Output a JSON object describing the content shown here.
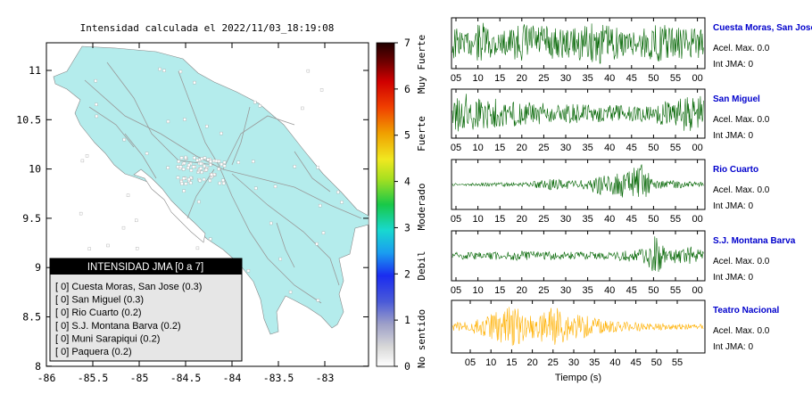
{
  "map": {
    "title": "Intensidad calculada el 2022/11/03_18:19:08",
    "x_ticks": [
      "-86",
      "-85.5",
      "-85",
      "-84.5",
      "-84",
      "-83.5",
      "-83"
    ],
    "y_ticks": [
      "11",
      "10.5",
      "10",
      "9.5",
      "9",
      "8.5",
      "8"
    ],
    "legend": {
      "title": "INTENSIDAD JMA [0 a 7]",
      "items": [
        "[ 0]  Cuesta Moras, San Jose (0.3)",
        "[ 0]  San Miguel (0.3)",
        "[ 0]  Rio Cuarto (0.2)",
        "[ 0]  S.J. Montana Barva (0.2)",
        "[ 0]  Muni Sarapiqui (0.2)",
        "[ 0]  Paquera (0.2)"
      ]
    }
  },
  "colorbar": {
    "ticks": [
      "0",
      "1",
      "2",
      "3",
      "4",
      "5",
      "6",
      "7"
    ],
    "labels": [
      "No sentido",
      "Debil",
      "Moderado",
      "Fuerte",
      "Muy Fuerte"
    ]
  },
  "chart_data": [
    {
      "type": "line",
      "station": "Cuesta Moras, San Jose",
      "color": "#006400",
      "x_ticks": [
        "05",
        "10",
        "15",
        "20",
        "25",
        "30",
        "35",
        "40",
        "45",
        "50",
        "55",
        "00"
      ],
      "accel_label": "Acel. Max. 0.0",
      "int_label": "Int JMA: 0"
    },
    {
      "type": "line",
      "station": "San Miguel",
      "color": "#006400",
      "x_ticks": [
        "05",
        "10",
        "15",
        "20",
        "25",
        "30",
        "35",
        "40",
        "45",
        "50",
        "55",
        "00"
      ],
      "accel_label": "Acel. Max. 0.0",
      "int_label": "Int JMA: 0"
    },
    {
      "type": "line",
      "station": "Rio Cuarto",
      "color": "#006400",
      "x_ticks": [
        "05",
        "10",
        "15",
        "20",
        "25",
        "30",
        "35",
        "40",
        "45",
        "50",
        "55",
        "00"
      ],
      "accel_label": "Acel. Max. 0.0",
      "int_label": "Int JMA: 0"
    },
    {
      "type": "line",
      "station": "S.J. Montana Barva",
      "color": "#006400",
      "x_ticks": [
        "05",
        "10",
        "15",
        "20",
        "25",
        "30",
        "35",
        "40",
        "45",
        "50",
        "55",
        "00"
      ],
      "accel_label": "Acel. Max. 0.0",
      "int_label": "Int JMA: 0"
    },
    {
      "type": "line",
      "station": "Teatro Nacional",
      "color": "#ffb000",
      "x_ticks": [
        "05",
        "10",
        "15",
        "20",
        "25",
        "30",
        "35",
        "40",
        "45",
        "50",
        "55"
      ],
      "accel_label": "Acel. Max. 0.0",
      "int_label": "Int JMA: 0"
    }
  ],
  "time_axis_label": "Tiempo (s)",
  "colors": {
    "land": "#b4ecec",
    "station_link": "#0000cc",
    "legend_header": "#000000"
  }
}
